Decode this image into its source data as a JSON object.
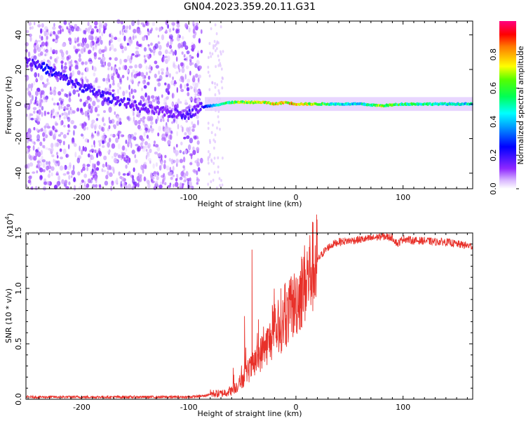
{
  "title": "GN04.2023.359.20.11.G31",
  "chart_data": [
    {
      "type": "heatmap",
      "xlabel": "Height of straight line (km)",
      "ylabel": "Frequency (Hz)",
      "xlim": [
        -252,
        165
      ],
      "ylim": [
        -49,
        48
      ],
      "xticks": [
        -200,
        -100,
        0,
        100
      ],
      "yticks": [
        -40,
        -20,
        0,
        20,
        40
      ],
      "colorbar": {
        "label": "Normalized spectral amplitude",
        "ticks": [
          "0.0",
          "0.2",
          "0.4",
          "0.6",
          "0.8"
        ],
        "range": [
          0,
          1
        ],
        "colormap": [
          "#ffffff",
          "#7f00ff",
          "#0000ff",
          "#00ffff",
          "#00ff00",
          "#ffff00",
          "#ff0000",
          "#ff00aa"
        ]
      },
      "ridge": {
        "x": [
          -252,
          -235,
          -220,
          -200,
          -180,
          -160,
          -140,
          -120,
          -100,
          -90,
          -80,
          -70,
          -60,
          -50,
          -40,
          -30,
          -20,
          -10,
          0,
          20,
          40,
          60,
          80,
          100,
          120,
          140,
          165
        ],
        "frequency": [
          26,
          21,
          16,
          10,
          5,
          1,
          -3,
          -5,
          -6,
          -2,
          -1,
          0,
          1,
          1,
          1,
          1,
          0,
          1,
          0,
          0,
          0,
          0,
          -1,
          0,
          0,
          0,
          0
        ],
        "amplitude": [
          0.15,
          0.25,
          0.2,
          0.2,
          0.2,
          0.18,
          0.15,
          0.15,
          0.2,
          0.15,
          0.35,
          0.5,
          0.65,
          0.7,
          0.75,
          0.75,
          0.8,
          0.8,
          0.85,
          0.7,
          0.5,
          0.5,
          0.7,
          0.6,
          0.55,
          0.5,
          0.5
        ]
      }
    },
    {
      "type": "line",
      "xlabel": "Height of straight line (km)",
      "ylabel": "SNR (10 * v/v)",
      "y_multiplier": "(x10",
      "y_multiplier_exp": "4",
      "y_multiplier_close": ")",
      "xlim": [
        -252,
        165
      ],
      "ylim": [
        0,
        1.5
      ],
      "xticks": [
        -200,
        -100,
        0,
        100
      ],
      "yticks": [
        "0.0",
        "0.5",
        "1.0",
        "1.5"
      ],
      "color": "#e8312a",
      "series": {
        "x": [
          -252,
          -200,
          -150,
          -100,
          -85,
          -80,
          -70,
          -60,
          -55,
          -50,
          -45,
          -40,
          -35,
          -30,
          -25,
          -20,
          -15,
          -10,
          -5,
          0,
          5,
          10,
          15,
          20,
          25,
          30,
          35,
          40,
          50,
          60,
          70,
          80,
          90,
          95,
          100,
          110,
          120,
          130,
          140,
          150,
          165
        ],
        "y": [
          0.02,
          0.02,
          0.02,
          0.02,
          0.03,
          0.05,
          0.05,
          0.08,
          0.12,
          0.18,
          0.25,
          0.3,
          0.38,
          0.45,
          0.52,
          0.6,
          0.65,
          0.72,
          0.8,
          0.88,
          0.98,
          1.08,
          1.18,
          1.25,
          1.32,
          1.37,
          1.4,
          1.42,
          1.43,
          1.44,
          1.45,
          1.47,
          1.46,
          1.4,
          1.45,
          1.43,
          1.43,
          1.42,
          1.42,
          1.4,
          1.38
        ]
      },
      "spikes": [
        {
          "x": -41,
          "y": 1.35
        },
        {
          "x": -48,
          "y": 0.75
        },
        {
          "x": -35,
          "y": 0.72
        },
        {
          "x": -22,
          "y": 0.85
        },
        {
          "x": -14,
          "y": 1.0
        },
        {
          "x": -10,
          "y": 1.05
        }
      ]
    }
  ]
}
